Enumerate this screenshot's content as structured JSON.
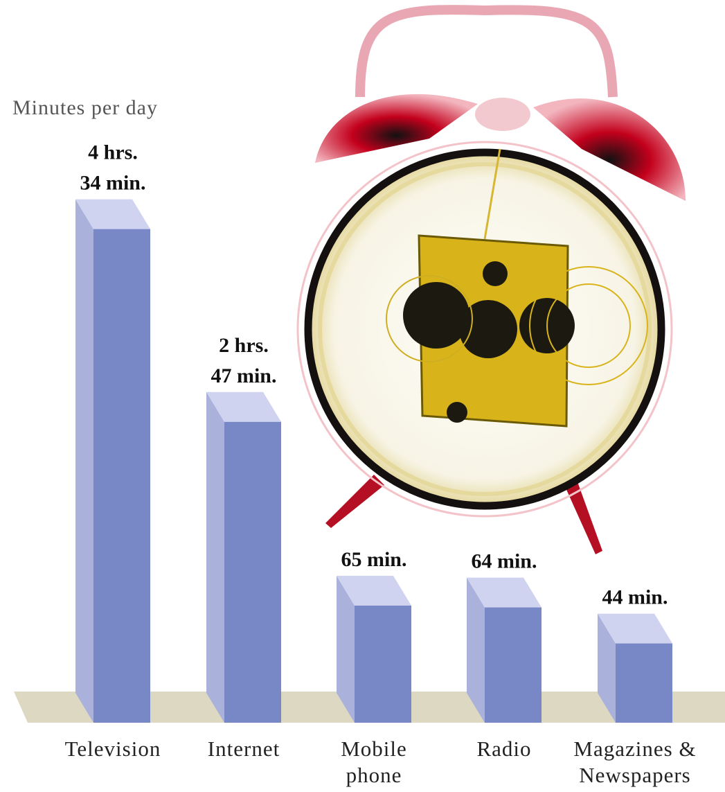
{
  "chart_data": {
    "type": "bar3d",
    "subtitle": "Minutes per day",
    "categories": [
      "Television",
      "Internet",
      "Mobile phone",
      "Radio",
      "Magazines & Newspapers"
    ],
    "values": [
      274,
      167,
      65,
      64,
      44
    ],
    "value_labels": [
      [
        "4 hrs.",
        "34 min."
      ],
      [
        "2 hrs.",
        "47 min."
      ],
      [
        "65 min."
      ],
      [
        "64 min."
      ],
      [
        "44 min."
      ]
    ],
    "color": "#7888c6"
  }
}
